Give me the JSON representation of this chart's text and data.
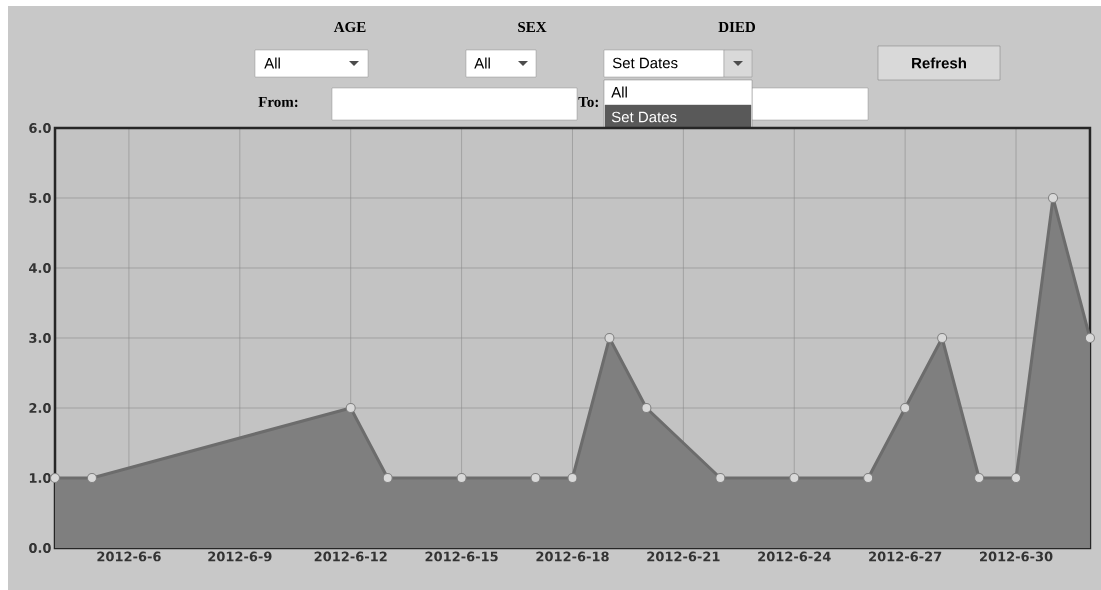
{
  "chart_data": {
    "type": "area",
    "x": [
      "2012-06-04",
      "2012-06-05",
      "2012-06-12",
      "2012-06-13",
      "2012-06-15",
      "2012-06-17",
      "2012-06-18",
      "2012-06-19",
      "2012-06-20",
      "2012-06-22",
      "2012-06-24",
      "2012-06-26",
      "2012-06-27",
      "2012-06-28",
      "2012-06-29",
      "2012-06-30",
      "2012-07-01",
      "2012-07-02"
    ],
    "values": [
      1,
      1,
      2,
      1,
      1,
      1,
      1,
      3,
      2,
      1,
      1,
      1,
      2,
      3,
      1,
      1,
      5,
      3
    ],
    "color": "#7f7f7f",
    "xlim": [
      "2012-06-04",
      "2012-07-02"
    ],
    "xticks": [
      {
        "value": "2012-06-06",
        "label": "2012-6-6"
      },
      {
        "value": "2012-06-09",
        "label": "2012-6-9"
      },
      {
        "value": "2012-06-12",
        "label": "2012-6-12"
      },
      {
        "value": "2012-06-15",
        "label": "2012-6-15"
      },
      {
        "value": "2012-06-18",
        "label": "2012-6-18"
      },
      {
        "value": "2012-06-21",
        "label": "2012-6-21"
      },
      {
        "value": "2012-06-24",
        "label": "2012-6-24"
      },
      {
        "value": "2012-06-27",
        "label": "2012-6-27"
      },
      {
        "value": "2012-06-30",
        "label": "2012-6-30"
      }
    ],
    "ylim": [
      0,
      6
    ],
    "yticks": [
      {
        "value": 0,
        "label": "0.0"
      },
      {
        "value": 1,
        "label": "1.0"
      },
      {
        "value": 2,
        "label": "2.0"
      },
      {
        "value": 3,
        "label": "3.0"
      },
      {
        "value": 4,
        "label": "4.0"
      },
      {
        "value": 5,
        "label": "5.0"
      },
      {
        "value": 6,
        "label": "6.0"
      }
    ],
    "grid": true,
    "marker": "circle",
    "annotations": [
      "AGE",
      "SEX",
      "DIED",
      "All",
      "All",
      "Set Dates",
      "Refresh",
      "From:",
      "To:",
      "All",
      "Set Dates"
    ]
  }
}
